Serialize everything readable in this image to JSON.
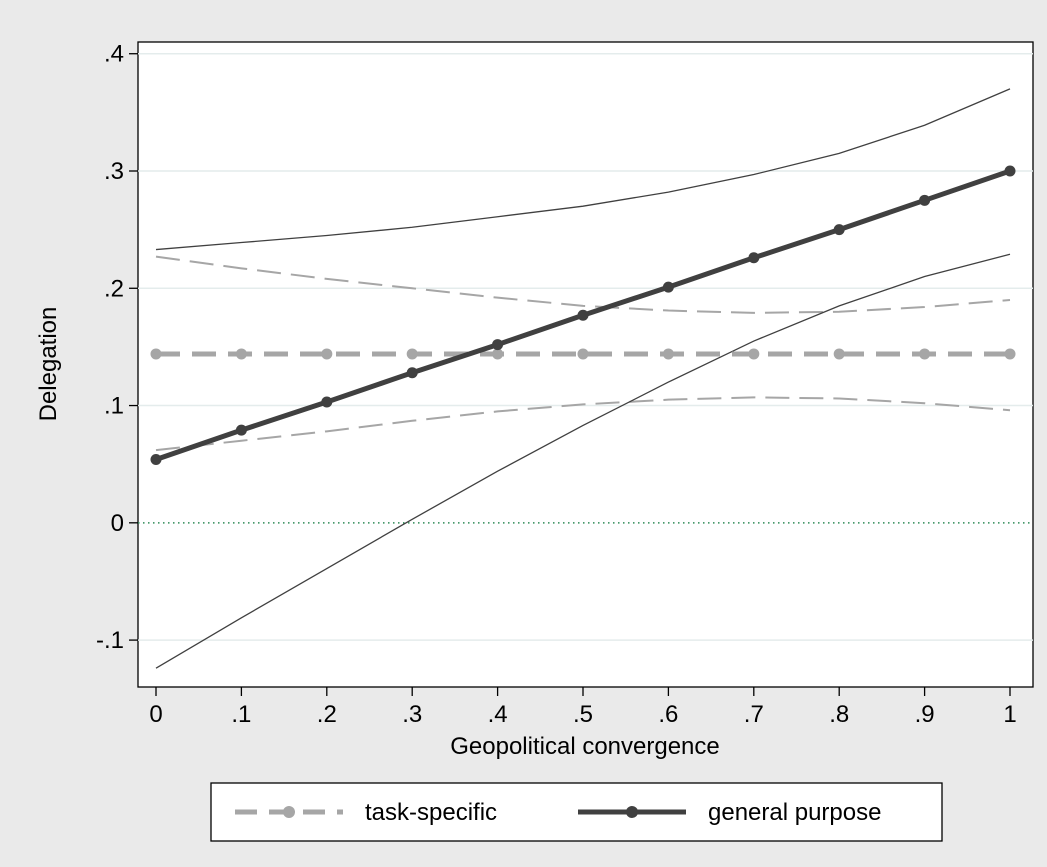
{
  "chart_data": {
    "type": "line",
    "title": "",
    "xlabel": "Geopolitical convergence",
    "ylabel": "Delegation",
    "xlim": [
      0,
      1
    ],
    "ylim": [
      -0.14,
      0.41
    ],
    "x_ticks": [
      0,
      0.1,
      0.2,
      0.3,
      0.4,
      0.5,
      0.6,
      0.7,
      0.8,
      0.9,
      1
    ],
    "x_tick_labels": [
      "0",
      ".1",
      ".2",
      ".3",
      ".4",
      ".5",
      ".6",
      ".7",
      ".8",
      ".9",
      "1"
    ],
    "y_ticks": [
      -0.1,
      0,
      0.1,
      0.2,
      0.3,
      0.4
    ],
    "y_tick_labels": [
      "-.1",
      "0",
      ".1",
      ".2",
      ".3",
      ".4"
    ],
    "grid": true,
    "legend_position": "bottom",
    "reference_line": {
      "y": 0,
      "style": "dotted",
      "color": "#2e8b57"
    },
    "x": [
      0,
      0.1,
      0.2,
      0.3,
      0.4,
      0.5,
      0.6,
      0.7,
      0.8,
      0.9,
      1
    ],
    "series": [
      {
        "name": "task-specific",
        "style": "dashed",
        "color": "#a6a6a6",
        "markers": true,
        "values": [
          0.144,
          0.144,
          0.144,
          0.144,
          0.144,
          0.144,
          0.144,
          0.144,
          0.144,
          0.144,
          0.144
        ],
        "ci_lower": [
          0.062,
          0.07,
          0.078,
          0.087,
          0.095,
          0.101,
          0.105,
          0.107,
          0.106,
          0.102,
          0.096
        ],
        "ci_upper": [
          0.227,
          0.217,
          0.208,
          0.2,
          0.192,
          0.185,
          0.181,
          0.179,
          0.18,
          0.184,
          0.19
        ]
      },
      {
        "name": "general purpose",
        "style": "solid",
        "color": "#404040",
        "markers": true,
        "values": [
          0.054,
          0.079,
          0.103,
          0.128,
          0.152,
          0.177,
          0.201,
          0.226,
          0.25,
          0.275,
          0.3
        ],
        "ci_lower": [
          -0.124,
          -0.081,
          -0.039,
          0.003,
          0.044,
          0.083,
          0.12,
          0.155,
          0.185,
          0.21,
          0.229
        ],
        "ci_upper": [
          0.233,
          0.239,
          0.245,
          0.252,
          0.261,
          0.27,
          0.282,
          0.297,
          0.315,
          0.339,
          0.37
        ]
      }
    ]
  }
}
